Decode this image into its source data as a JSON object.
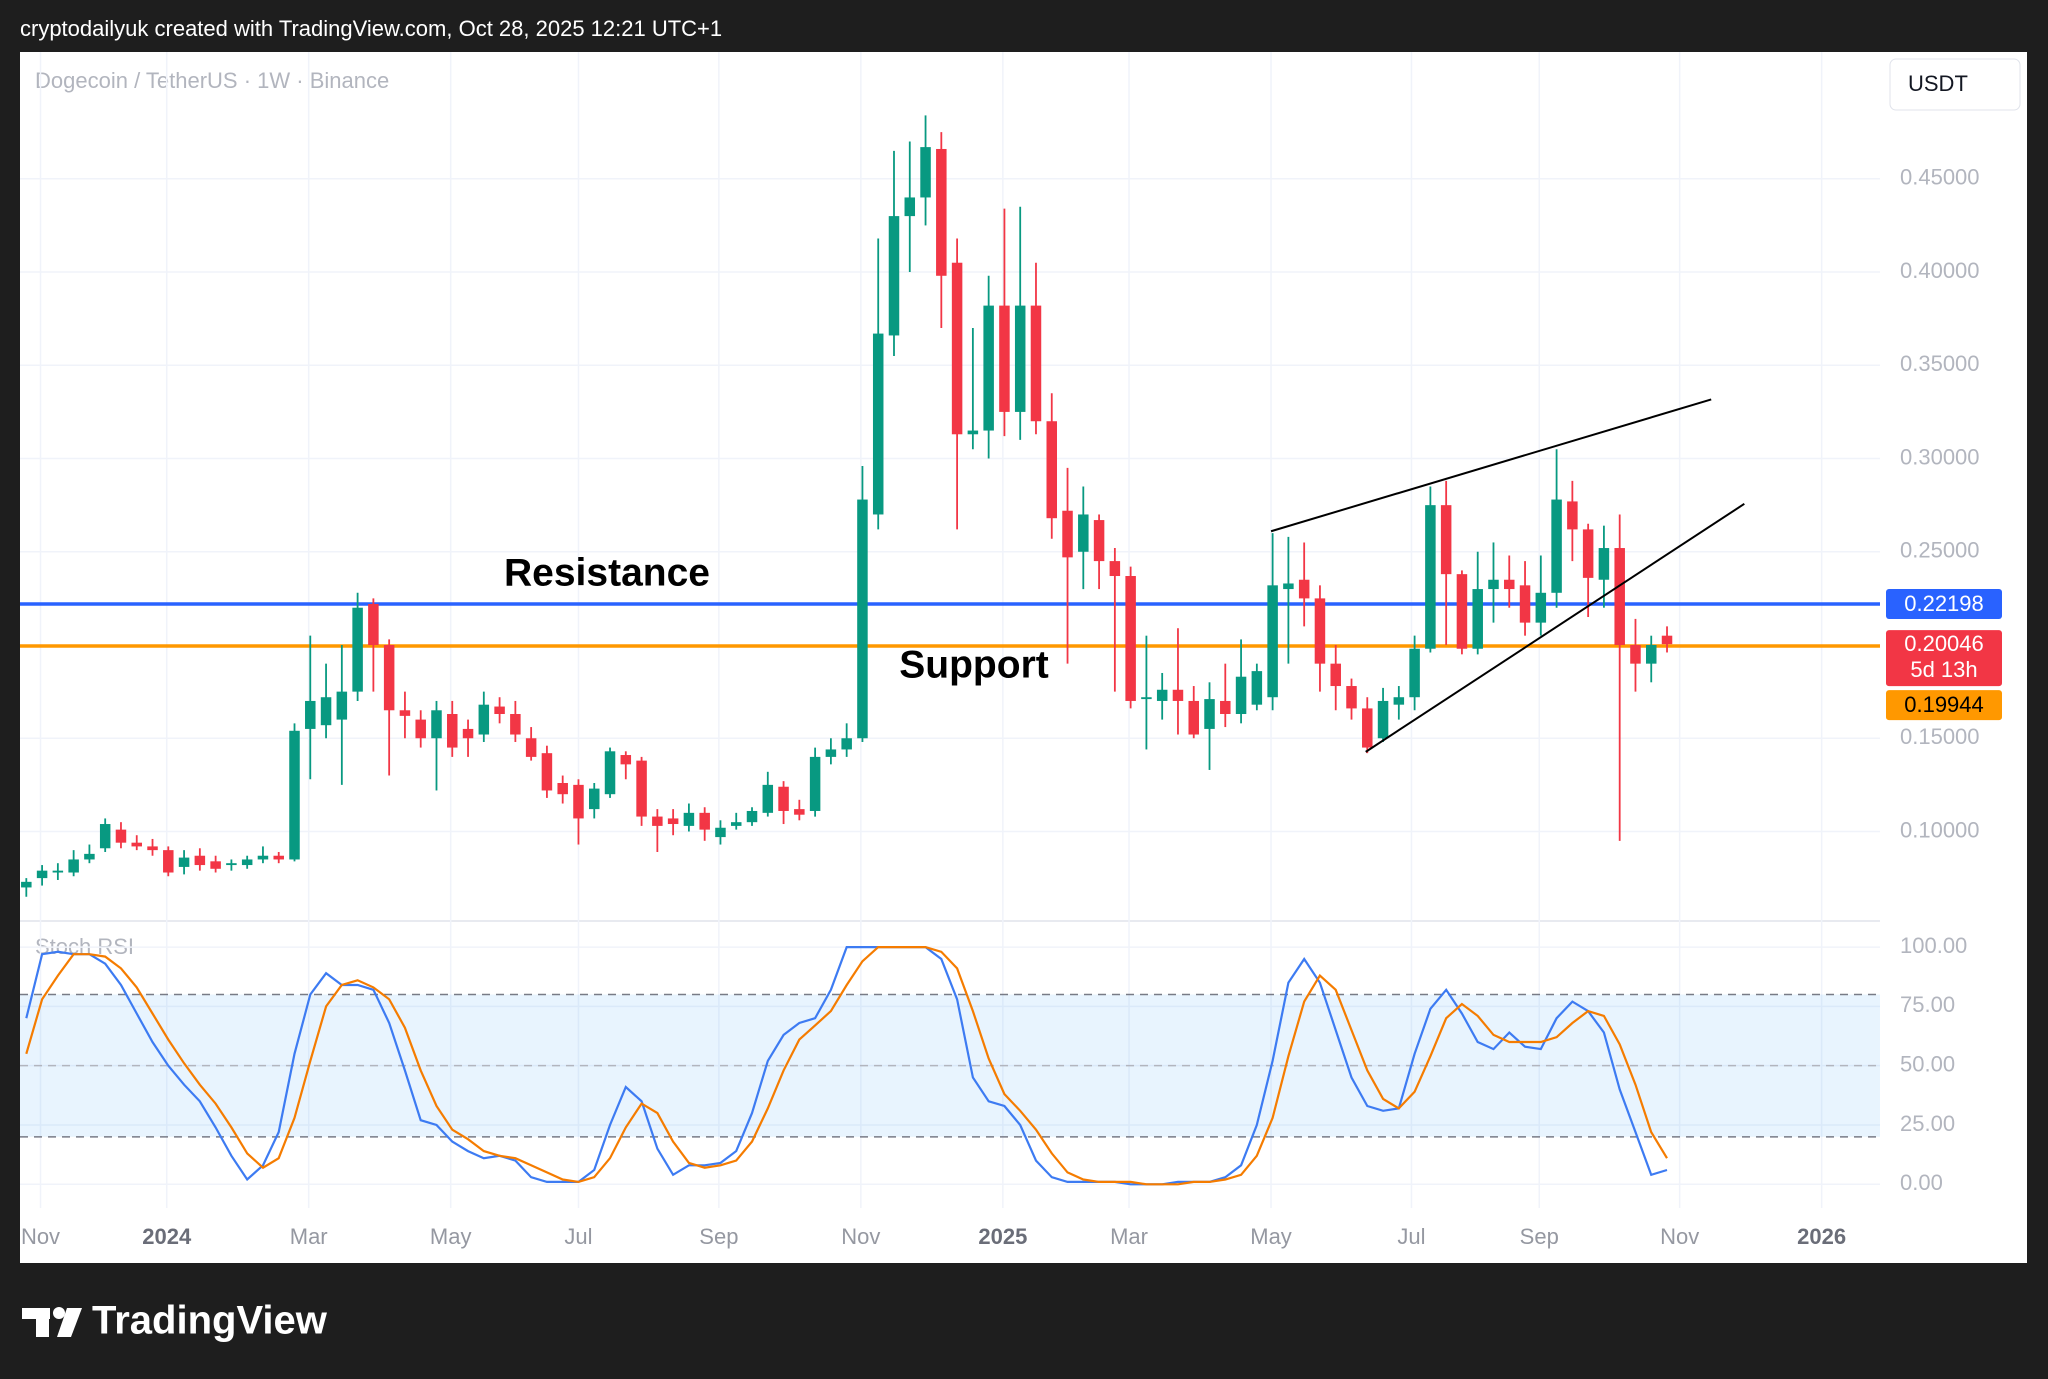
{
  "header": "cryptodailyuk created with TradingView.com, Oct 28, 2025 12:21 UTC+1",
  "currency_button": "USDT",
  "footer_logo": "TradingView",
  "chart_data": [
    {
      "type": "candlestick",
      "title": "Dogecoin / TetherUS · 1W · Binance",
      "up_color": "#089981",
      "down_color": "#f23645",
      "open": [
        0.07,
        0.075,
        0.078,
        0.078,
        0.085,
        0.091,
        0.101,
        0.094,
        0.092,
        0.09,
        0.081,
        0.087,
        0.084,
        0.082,
        0.082,
        0.085,
        0.087,
        0.085,
        0.155,
        0.157,
        0.16,
        0.175,
        0.222,
        0.2,
        0.165,
        0.16,
        0.15,
        0.163,
        0.155,
        0.152,
        0.167,
        0.163,
        0.15,
        0.142,
        0.126,
        0.125,
        0.112,
        0.12,
        0.141,
        0.138,
        0.108,
        0.107,
        0.103,
        0.11,
        0.097,
        0.103,
        0.105,
        0.11,
        0.124,
        0.112,
        0.111,
        0.14,
        0.144,
        0.15,
        0.27,
        0.366,
        0.43,
        0.44,
        0.466,
        0.405,
        0.313,
        0.315,
        0.382,
        0.325,
        0.382,
        0.32,
        0.272,
        0.25,
        0.267,
        0.245,
        0.237,
        0.171,
        0.17,
        0.176,
        0.17,
        0.155,
        0.17,
        0.163,
        0.168,
        0.172,
        0.23,
        0.235,
        0.225,
        0.19,
        0.178,
        0.166,
        0.15,
        0.168,
        0.172,
        0.198,
        0.275,
        0.238,
        0.198,
        0.23,
        0.235,
        0.232,
        0.212,
        0.228,
        0.277,
        0.262,
        0.235,
        0.252,
        0.2,
        0.19,
        0.205
      ],
      "high": [
        0.075,
        0.082,
        0.083,
        0.09,
        0.093,
        0.107,
        0.105,
        0.098,
        0.096,
        0.092,
        0.09,
        0.091,
        0.087,
        0.085,
        0.087,
        0.092,
        0.089,
        0.158,
        0.205,
        0.19,
        0.2,
        0.228,
        0.225,
        0.203,
        0.175,
        0.165,
        0.17,
        0.17,
        0.16,
        0.175,
        0.172,
        0.17,
        0.156,
        0.146,
        0.13,
        0.128,
        0.126,
        0.145,
        0.143,
        0.14,
        0.112,
        0.112,
        0.115,
        0.113,
        0.106,
        0.11,
        0.113,
        0.132,
        0.127,
        0.117,
        0.145,
        0.15,
        0.158,
        0.296,
        0.418,
        0.465,
        0.47,
        0.484,
        0.475,
        0.418,
        0.37,
        0.398,
        0.434,
        0.435,
        0.405,
        0.335,
        0.295,
        0.285,
        0.27,
        0.252,
        0.242,
        0.205,
        0.185,
        0.209,
        0.178,
        0.18,
        0.19,
        0.203,
        0.19,
        0.26,
        0.258,
        0.255,
        0.232,
        0.2,
        0.182,
        0.172,
        0.177,
        0.178,
        0.205,
        0.285,
        0.288,
        0.24,
        0.25,
        0.255,
        0.248,
        0.245,
        0.248,
        0.305,
        0.288,
        0.265,
        0.264,
        0.27,
        0.214,
        0.205,
        0.21
      ],
      "low": [
        0.065,
        0.071,
        0.074,
        0.076,
        0.083,
        0.089,
        0.091,
        0.09,
        0.087,
        0.076,
        0.077,
        0.079,
        0.078,
        0.079,
        0.08,
        0.083,
        0.083,
        0.084,
        0.128,
        0.15,
        0.125,
        0.17,
        0.175,
        0.13,
        0.15,
        0.145,
        0.122,
        0.14,
        0.14,
        0.148,
        0.158,
        0.148,
        0.138,
        0.118,
        0.115,
        0.093,
        0.107,
        0.118,
        0.128,
        0.103,
        0.089,
        0.098,
        0.1,
        0.095,
        0.093,
        0.101,
        0.103,
        0.108,
        0.104,
        0.106,
        0.108,
        0.136,
        0.14,
        0.148,
        0.262,
        0.355,
        0.4,
        0.425,
        0.37,
        0.262,
        0.305,
        0.3,
        0.312,
        0.31,
        0.313,
        0.257,
        0.19,
        0.23,
        0.23,
        0.175,
        0.166,
        0.144,
        0.16,
        0.152,
        0.15,
        0.133,
        0.156,
        0.158,
        0.165,
        0.165,
        0.19,
        0.21,
        0.175,
        0.165,
        0.16,
        0.142,
        0.148,
        0.16,
        0.165,
        0.196,
        0.2,
        0.195,
        0.195,
        0.212,
        0.22,
        0.205,
        0.205,
        0.22,
        0.245,
        0.215,
        0.22,
        0.095,
        0.175,
        0.18,
        0.196
      ],
      "close": [
        0.073,
        0.079,
        0.079,
        0.085,
        0.088,
        0.104,
        0.094,
        0.092,
        0.09,
        0.078,
        0.086,
        0.082,
        0.08,
        0.083,
        0.085,
        0.087,
        0.085,
        0.154,
        0.17,
        0.172,
        0.175,
        0.22,
        0.2,
        0.165,
        0.162,
        0.15,
        0.165,
        0.145,
        0.15,
        0.168,
        0.163,
        0.152,
        0.14,
        0.122,
        0.12,
        0.107,
        0.123,
        0.143,
        0.136,
        0.108,
        0.103,
        0.104,
        0.11,
        0.101,
        0.102,
        0.105,
        0.111,
        0.125,
        0.111,
        0.109,
        0.14,
        0.144,
        0.15,
        0.278,
        0.367,
        0.43,
        0.44,
        0.467,
        0.398,
        0.313,
        0.315,
        0.382,
        0.325,
        0.382,
        0.32,
        0.268,
        0.247,
        0.27,
        0.245,
        0.237,
        0.17,
        0.172,
        0.176,
        0.17,
        0.152,
        0.171,
        0.163,
        0.183,
        0.186,
        0.232,
        0.233,
        0.225,
        0.19,
        0.178,
        0.166,
        0.145,
        0.17,
        0.172,
        0.198,
        0.275,
        0.238,
        0.198,
        0.23,
        0.235,
        0.23,
        0.212,
        0.228,
        0.278,
        0.262,
        0.236,
        0.252,
        0.2,
        0.19,
        0.2,
        0.20046
      ],
      "countdown": "5d 13h",
      "xlim": [
        -0.4,
        117.5
      ],
      "ylim": [
        0.052,
        0.518
      ],
      "yticks": [
        {
          "value": 0.1,
          "label": "0.10000"
        },
        {
          "value": 0.15,
          "label": "0.15000"
        },
        {
          "value": 0.25,
          "label": "0.25000"
        },
        {
          "value": 0.3,
          "label": "0.30000"
        },
        {
          "value": 0.35,
          "label": "0.35000"
        },
        {
          "value": 0.4,
          "label": "0.40000"
        },
        {
          "value": 0.45,
          "label": "0.45000"
        }
      ],
      "grid": true,
      "hlines": [
        {
          "value": 0.22198,
          "color": "#2962ff"
        },
        {
          "value": 0.19944,
          "color": "#ff9800"
        }
      ],
      "trendlines": [
        {
          "x": [
            78.9,
            106.8
          ],
          "y": [
            0.261,
            0.3317
          ]
        },
        {
          "x": [
            84.9,
            108.9
          ],
          "y": [
            0.1427,
            0.2757
          ]
        }
      ],
      "annotations": [
        "Resistance",
        "Support"
      ]
    },
    {
      "type": "line",
      "title": "Stoch RSI",
      "series": [
        {
          "color": "#3d7bf2",
          "values": [
            70,
            97,
            98,
            97,
            97,
            93,
            84,
            72,
            60,
            50,
            42,
            35,
            24,
            12,
            2,
            8,
            22,
            55,
            80,
            89,
            84,
            84,
            82,
            68,
            48,
            27,
            25,
            18,
            14,
            11,
            12,
            10,
            3,
            1,
            1,
            1,
            6,
            25,
            41,
            35,
            15,
            4,
            8,
            8,
            9,
            14,
            30,
            52,
            63,
            68,
            70,
            82,
            100,
            100,
            100,
            100,
            100,
            100,
            95,
            78,
            45,
            35,
            33,
            25,
            10,
            3,
            1,
            1,
            1,
            1,
            0,
            0,
            0,
            1,
            1,
            1,
            3,
            8,
            25,
            52,
            85,
            95,
            85,
            65,
            45,
            33,
            31,
            32,
            55,
            74,
            82,
            72,
            60,
            57,
            64,
            58,
            57,
            70,
            77,
            73,
            64,
            40,
            22,
            4,
            6
          ]
        },
        {
          "color": "#f57c00",
          "values": [
            55,
            78,
            88,
            97,
            97,
            96,
            91,
            83,
            72,
            61,
            51,
            42,
            34,
            24,
            13,
            7,
            11,
            28,
            52,
            75,
            84,
            86,
            83,
            78,
            66,
            48,
            33,
            23,
            19,
            14,
            12,
            11,
            8,
            5,
            2,
            1,
            3,
            11,
            24,
            34,
            30,
            18,
            9,
            7,
            8,
            10,
            18,
            32,
            48,
            61,
            67,
            73,
            84,
            94,
            100,
            100,
            100,
            100,
            98,
            91,
            73,
            53,
            38,
            31,
            23,
            13,
            5,
            2,
            1,
            1,
            1,
            0,
            0,
            0,
            1,
            1,
            2,
            4,
            12,
            28,
            54,
            77,
            88,
            82,
            65,
            48,
            36,
            32,
            39,
            54,
            70,
            76,
            71,
            63,
            60,
            60,
            60,
            62,
            68,
            73,
            71,
            59,
            42,
            22,
            11
          ]
        }
      ],
      "band": [
        20,
        80
      ],
      "midline": 50,
      "xlim": [
        -0.4,
        117.5
      ],
      "ylim": [
        -10,
        111
      ],
      "yticks": [
        {
          "value": 0,
          "label": "0.00"
        },
        {
          "value": 25,
          "label": "25.00"
        },
        {
          "value": 50,
          "label": "50.00"
        },
        {
          "value": 75,
          "label": "75.00"
        },
        {
          "value": 100,
          "label": "100.00"
        }
      ],
      "xticks": [
        {
          "value": 0.9,
          "label": "Nov"
        },
        {
          "value": 8.9,
          "label": "2024"
        },
        {
          "value": 17.9,
          "label": "Mar"
        },
        {
          "value": 26.9,
          "label": "May"
        },
        {
          "value": 35.0,
          "label": "Jul"
        },
        {
          "value": 43.9,
          "label": "Sep"
        },
        {
          "value": 52.9,
          "label": "Nov"
        },
        {
          "value": 61.9,
          "label": "2025"
        },
        {
          "value": 69.9,
          "label": "Mar"
        },
        {
          "value": 78.9,
          "label": "May"
        },
        {
          "value": 87.8,
          "label": "Jul"
        },
        {
          "value": 95.9,
          "label": "Sep"
        },
        {
          "value": 104.8,
          "label": "Nov"
        },
        {
          "value": 113.8,
          "label": "2026"
        }
      ]
    }
  ]
}
